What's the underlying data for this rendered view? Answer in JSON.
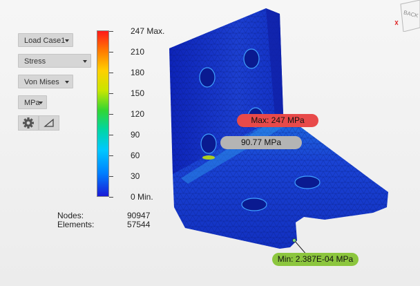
{
  "controls": {
    "load_case": "Load Case1",
    "result_type": "Stress",
    "component": "Von Mises",
    "units": "MPa"
  },
  "legend": {
    "ticks": [
      "247 Max.",
      "210",
      "180",
      "150",
      "120",
      "90",
      "60",
      "30",
      "0 Min."
    ]
  },
  "stats": {
    "nodes_label": "Nodes:",
    "nodes_value": "90947",
    "elements_label": "Elements:",
    "elements_value": "57544"
  },
  "probes": {
    "max_label": "Max: 247 MPa",
    "probe_label": "90.77 MPa",
    "min_label": "Min: 2.387E-04 MPa"
  },
  "viewcube": {
    "face_label": "BACK"
  },
  "icons": [
    "gear-icon",
    "triangle-icon"
  ],
  "colors": {
    "max_pill": "#e84a4a",
    "probe_pill": "#b4b4b4",
    "min_pill": "#8cc63e",
    "part_blue": "#1730c8"
  }
}
